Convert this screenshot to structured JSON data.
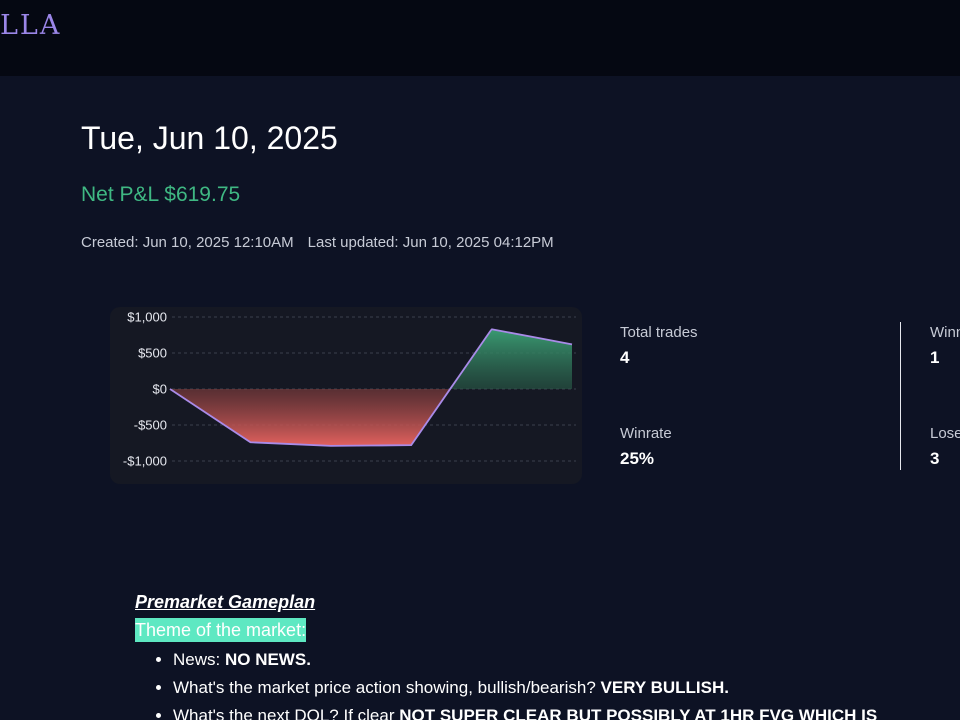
{
  "header": {
    "logo_text": "LLA"
  },
  "journal": {
    "title": "Tue, Jun 10, 2025",
    "net_pnl": "Net P&L $619.75",
    "created": "Created: Jun 10, 2025 12:10AM",
    "last_updated": "Last updated: Jun 10, 2025 04:12PM"
  },
  "colors": {
    "background": "#0d1224",
    "topbar": "#050812",
    "profit_green": "#3fb883",
    "loss_red": "#e0605c",
    "line_purple": "#a98be8",
    "highlight_teal": "#5ee8c2"
  },
  "chart_data": {
    "type": "area",
    "title": "",
    "xlabel": "",
    "ylabel": "",
    "ylim": [
      -1000,
      1000
    ],
    "ytick_labels": [
      "$1,000",
      "$500",
      "$0",
      "-$500",
      "-$1,000"
    ],
    "ytick_values": [
      1000,
      500,
      0,
      -500,
      -1000
    ],
    "grid": true,
    "x": [
      0,
      1,
      2,
      3,
      4,
      5
    ],
    "series": [
      {
        "values": [
          0,
          -740,
          -790,
          -780,
          830,
          620
        ]
      }
    ]
  },
  "stats": {
    "total_trades_label": "Total trades",
    "total_trades_value": "4",
    "winrate_label": "Winrate",
    "winrate_value": "25%",
    "winners_label": "Winn",
    "winners_value": "1",
    "losers_label": "Lose",
    "losers_value": "3"
  },
  "notes": {
    "heading": "Premarket Gameplan",
    "theme_label": "Theme of the market:",
    "items": [
      {
        "prefix": "News: ",
        "bold": "NO NEWS."
      },
      {
        "prefix": "What's the market price action showing, bullish/bearish? ",
        "bold": "VERY BULLISH."
      },
      {
        "prefix": "What's the next DOL? If clear ",
        "bold": "NOT SUPER CLEAR BUT POSSIBLY AT 1HR FVG WHICH IS"
      }
    ]
  }
}
